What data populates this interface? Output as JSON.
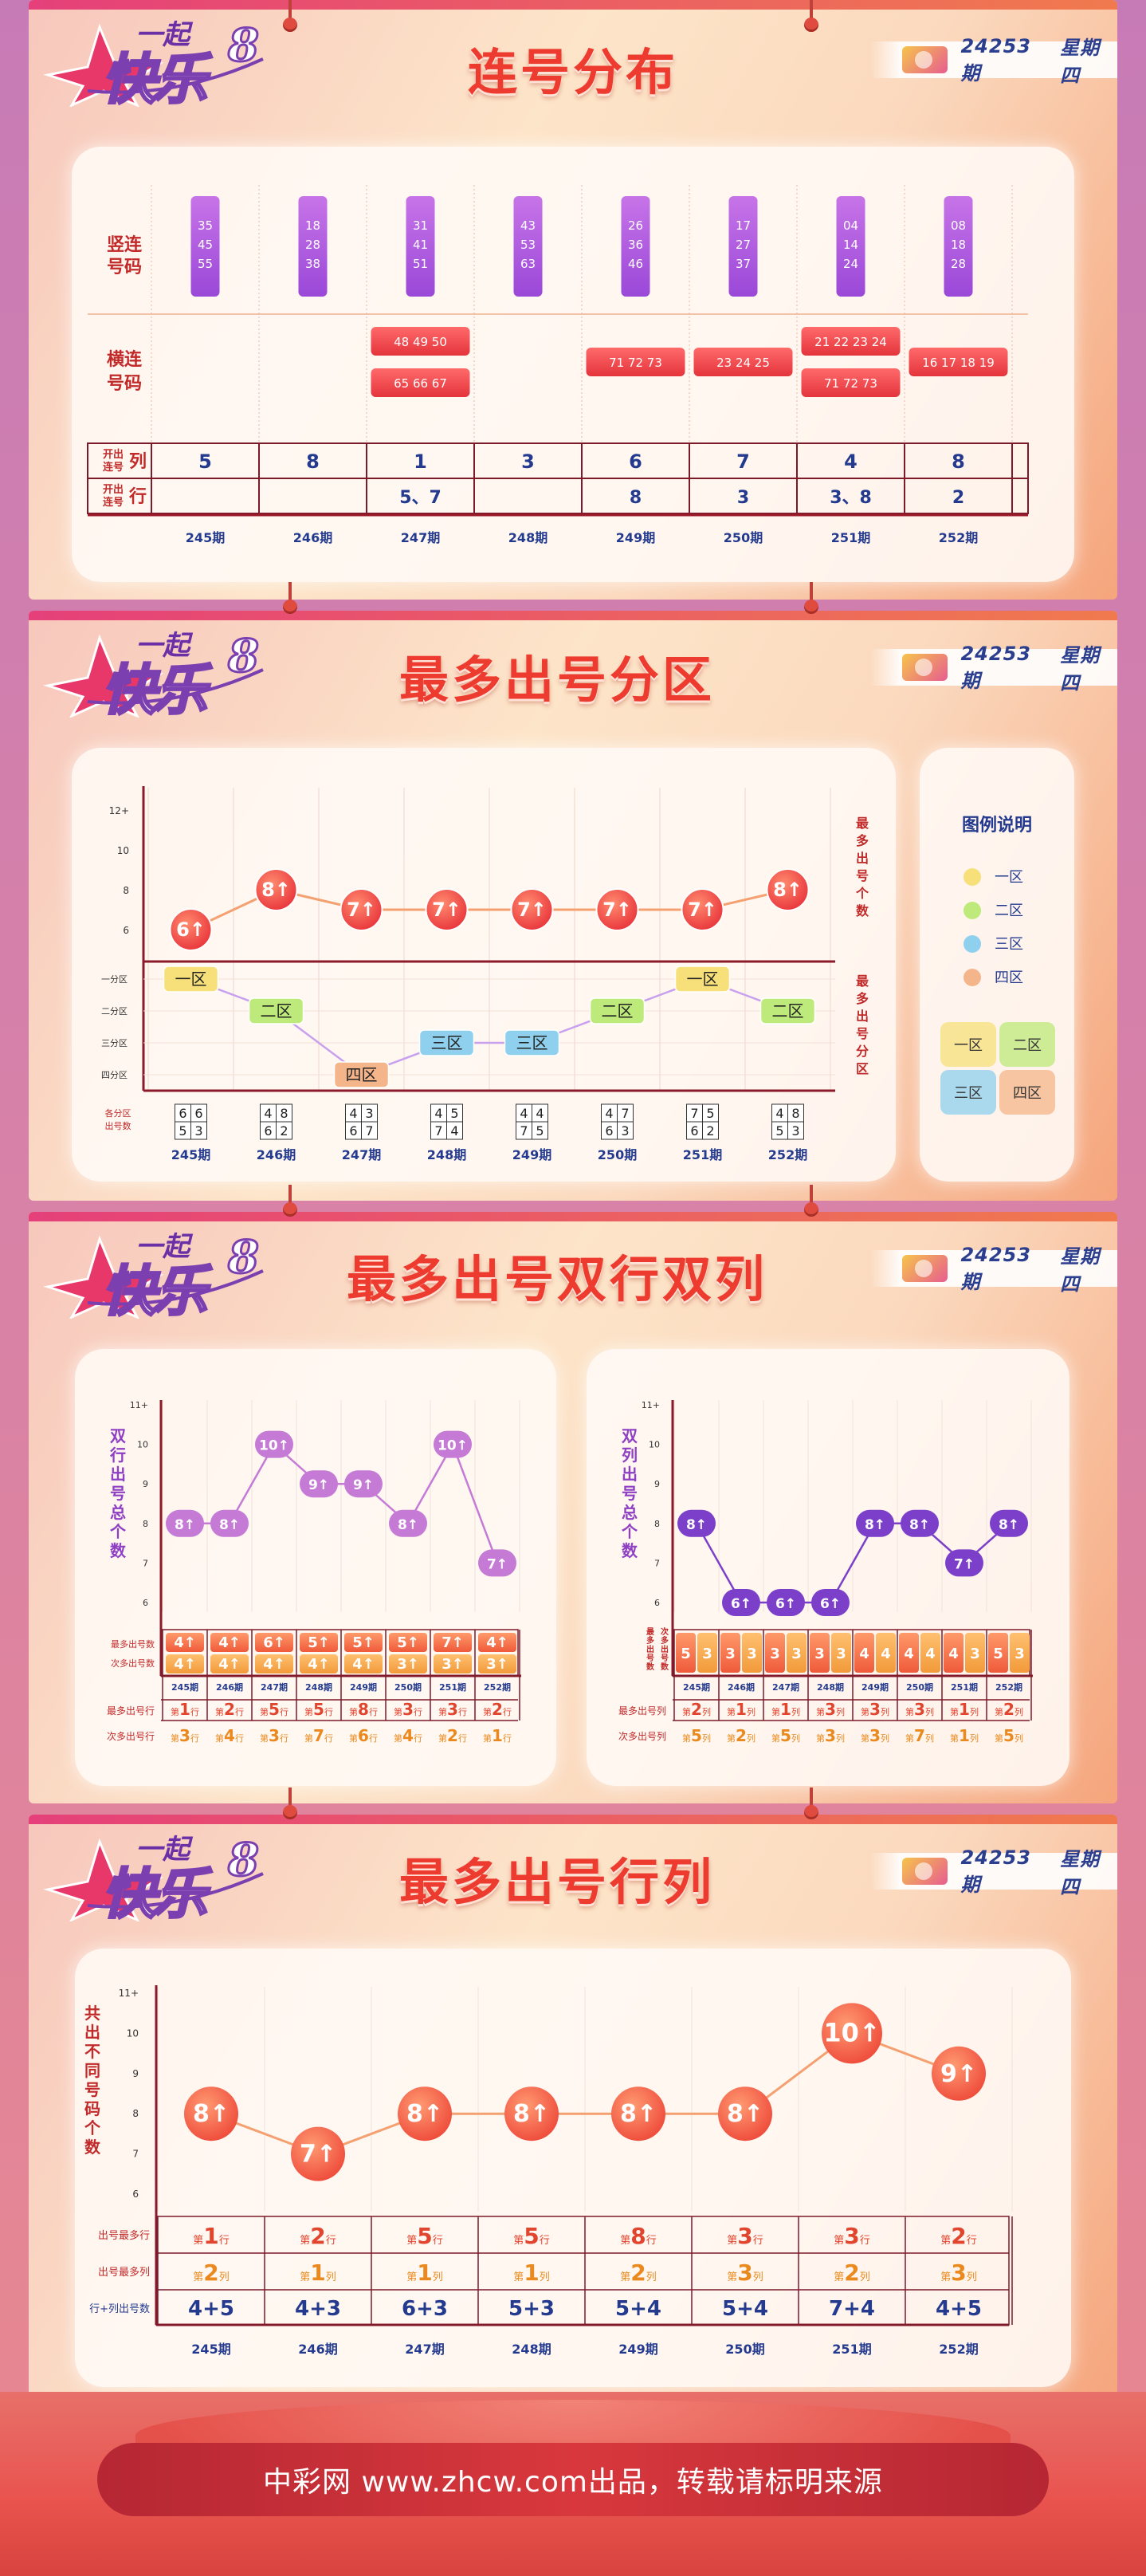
{
  "header": {
    "issue": "24253期",
    "weekday": "星期四"
  },
  "logo": {
    "line1": "一起",
    "line2": "快乐",
    "num": "8"
  },
  "footer": "中彩网 www.zhcw.com出品，转载请标明来源",
  "sec1": {
    "title": "连号分布",
    "row_labels": {
      "vert": [
        "竖连",
        "号码"
      ],
      "horz": [
        "横连",
        "号码"
      ],
      "col_a": [
        "开出",
        "连号"
      ],
      "col_b": "列",
      "row_a": [
        "开出",
        "连号"
      ],
      "row_b": "行"
    },
    "periods": [
      "245期",
      "246期",
      "247期",
      "248期",
      "249期",
      "250期",
      "251期",
      "252期"
    ],
    "vertical": [
      [
        "35",
        "45",
        "55"
      ],
      [
        "18",
        "28",
        "38"
      ],
      [
        "31",
        "41",
        "51"
      ],
      [
        "43",
        "53",
        "63"
      ],
      [
        "26",
        "36",
        "46"
      ],
      [
        "17",
        "27",
        "37"
      ],
      [
        "04",
        "14",
        "24"
      ],
      [
        "08",
        "18",
        "28"
      ]
    ],
    "horizontal": [
      [],
      [],
      [
        "48 49 50",
        "65 66 67"
      ],
      [],
      [
        "71 72 73"
      ],
      [
        "23 24 25"
      ],
      [
        "21 22 23 24",
        "71 72 73"
      ],
      [
        "16 17 18 19"
      ]
    ],
    "col_counts": [
      "5",
      "8",
      "1",
      "3",
      "6",
      "7",
      "4",
      "8"
    ],
    "row_counts": [
      "",
      "",
      "5、7",
      "",
      "8",
      "3",
      "3、8",
      "2"
    ]
  },
  "sec2": {
    "title": "最多出号分区",
    "y_ticks": [
      "12+",
      "10",
      "8",
      "6"
    ],
    "zone_ticks": [
      "一分区",
      "二分区",
      "三分区",
      "四分区"
    ],
    "right_label_top": "最多出号个数",
    "right_label_bot": "最多出号分区",
    "bottom_label": [
      "各分区",
      "出号数"
    ],
    "legend_title": "图例说明",
    "legend": [
      {
        "label": "一区",
        "color": "#f7e07a"
      },
      {
        "label": "二区",
        "color": "#bdea7a"
      },
      {
        "label": "三区",
        "color": "#8ed0ee"
      },
      {
        "label": "四区",
        "color": "#f5b58a"
      }
    ],
    "legend_grid": [
      "一区",
      "二区",
      "三区",
      "四区"
    ],
    "counts_grid": [
      [
        "6",
        "6",
        "5",
        "3"
      ],
      [
        "4",
        "8",
        "6",
        "2"
      ],
      [
        "4",
        "3",
        "6",
        "7"
      ],
      [
        "4",
        "5",
        "7",
        "4"
      ],
      [
        "4",
        "4",
        "7",
        "5"
      ],
      [
        "4",
        "7",
        "6",
        "3"
      ],
      [
        "7",
        "5",
        "6",
        "2"
      ],
      [
        "4",
        "8",
        "5",
        "3"
      ]
    ]
  },
  "sec3": {
    "title": "最多出号双行双列",
    "left": {
      "ylabel": "双行出号总个数",
      "y_ticks": [
        "11+",
        "10",
        "9",
        "8",
        "7",
        "6"
      ],
      "row_label1": "最多出号数",
      "row_label2": "次多出号数",
      "max_counts": [
        "4",
        "4",
        "6",
        "5",
        "5",
        "5",
        "7",
        "4"
      ],
      "sub_counts": [
        "4",
        "4",
        "4",
        "4",
        "4",
        "3",
        "3",
        "3"
      ],
      "label_a": "最多出号行",
      "label_b": "次多出号行",
      "max_rows": [
        "1",
        "2",
        "5",
        "5",
        "8",
        "3",
        "3",
        "2"
      ],
      "sub_rows": [
        "3",
        "4",
        "3",
        "7",
        "6",
        "4",
        "2",
        "1"
      ],
      "row_unit": "行",
      "prefix": "第"
    },
    "right": {
      "ylabel": "双列出号总个数",
      "y_ticks": [
        "11+",
        "10",
        "9",
        "8",
        "7",
        "6"
      ],
      "side_label1": "最多出号数",
      "side_label2": "次多出号数",
      "pairs": [
        [
          "5",
          "3"
        ],
        [
          "3",
          "3"
        ],
        [
          "3",
          "3"
        ],
        [
          "3",
          "3"
        ],
        [
          "4",
          "4"
        ],
        [
          "4",
          "4"
        ],
        [
          "4",
          "3"
        ],
        [
          "5",
          "3"
        ]
      ],
      "label_a": "最多出号列",
      "label_b": "次多出号列",
      "max_cols": [
        "2",
        "1",
        "1",
        "3",
        "3",
        "3",
        "1",
        "2"
      ],
      "sub_cols": [
        "5",
        "2",
        "5",
        "3",
        "3",
        "7",
        "1",
        "5"
      ],
      "col_unit": "列",
      "prefix": "第"
    },
    "periods": [
      "245期",
      "246期",
      "247期",
      "248期",
      "249期",
      "250期",
      "251期",
      "252期"
    ]
  },
  "sec4": {
    "title": "最多出号行列",
    "ylabel": "共出不同号码个数",
    "y_ticks": [
      "11+",
      "10",
      "9",
      "8",
      "7",
      "6"
    ],
    "label_row": "出号最多行",
    "label_col": "出号最多列",
    "label_sum": "行+列出号数",
    "max_rows": [
      "1",
      "2",
      "5",
      "5",
      "8",
      "3",
      "3",
      "2"
    ],
    "max_cols": [
      "2",
      "1",
      "1",
      "1",
      "2",
      "3",
      "2",
      "3"
    ],
    "sums": [
      "4+5",
      "4+3",
      "6+3",
      "5+3",
      "5+4",
      "5+4",
      "7+4",
      "4+5"
    ],
    "periods": [
      "245期",
      "246期",
      "247期",
      "248期",
      "249期",
      "250期",
      "251期",
      "252期"
    ],
    "row_unit": "行",
    "col_unit": "列",
    "prefix": "第"
  },
  "chart_data": [
    {
      "type": "line",
      "title": "最多出号分区",
      "x": [
        "245期",
        "246期",
        "247期",
        "248期",
        "249期",
        "250期",
        "251期",
        "252期"
      ],
      "series": [
        {
          "name": "最多出号个数",
          "values": [
            6,
            8,
            7,
            7,
            7,
            7,
            7,
            8
          ],
          "labels": [
            "6↑",
            "8↑",
            "7↑",
            "7↑",
            "7↑",
            "7↑",
            "7↑",
            "8↑"
          ]
        }
      ],
      "zones": [
        "一区",
        "二区",
        "四区",
        "三区",
        "三区",
        "二区",
        "一区",
        "二区"
      ],
      "zone_colors": [
        "#f7e07a",
        "#bdea7a",
        "#f5b58a",
        "#8ed0ee",
        "#8ed0ee",
        "#bdea7a",
        "#f7e07a",
        "#bdea7a"
      ],
      "ylim": [
        6,
        12
      ]
    },
    {
      "type": "line",
      "title": "双行出号总个数",
      "x": [
        "245期",
        "246期",
        "247期",
        "248期",
        "249期",
        "250期",
        "251期",
        "252期"
      ],
      "series": [
        {
          "values": [
            8,
            8,
            10,
            9,
            9,
            8,
            10,
            7
          ],
          "labels": [
            "8↑",
            "8↑",
            "10↑",
            "9↑",
            "9↑",
            "8↑",
            "10↑",
            "7↑"
          ]
        }
      ],
      "ylim": [
        6,
        11
      ]
    },
    {
      "type": "line",
      "title": "双列出号总个数",
      "x": [
        "245期",
        "246期",
        "247期",
        "248期",
        "249期",
        "250期",
        "251期",
        "252期"
      ],
      "series": [
        {
          "values": [
            8,
            6,
            6,
            6,
            8,
            8,
            7,
            8
          ],
          "labels": [
            "8↑",
            "6↑",
            "6↑",
            "6↑",
            "8↑",
            "8↑",
            "7↑",
            "8↑"
          ]
        }
      ],
      "ylim": [
        6,
        11
      ]
    },
    {
      "type": "line",
      "title": "共出不同号码个数",
      "x": [
        "245期",
        "246期",
        "247期",
        "248期",
        "249期",
        "250期",
        "251期",
        "252期"
      ],
      "series": [
        {
          "values": [
            8,
            7,
            8,
            8,
            8,
            8,
            10,
            9
          ],
          "labels": [
            "8↑",
            "7↑",
            "8↑",
            "8↑",
            "8↑",
            "8↑",
            "10↑",
            "9↑"
          ]
        }
      ],
      "ylim": [
        6,
        11
      ]
    }
  ]
}
